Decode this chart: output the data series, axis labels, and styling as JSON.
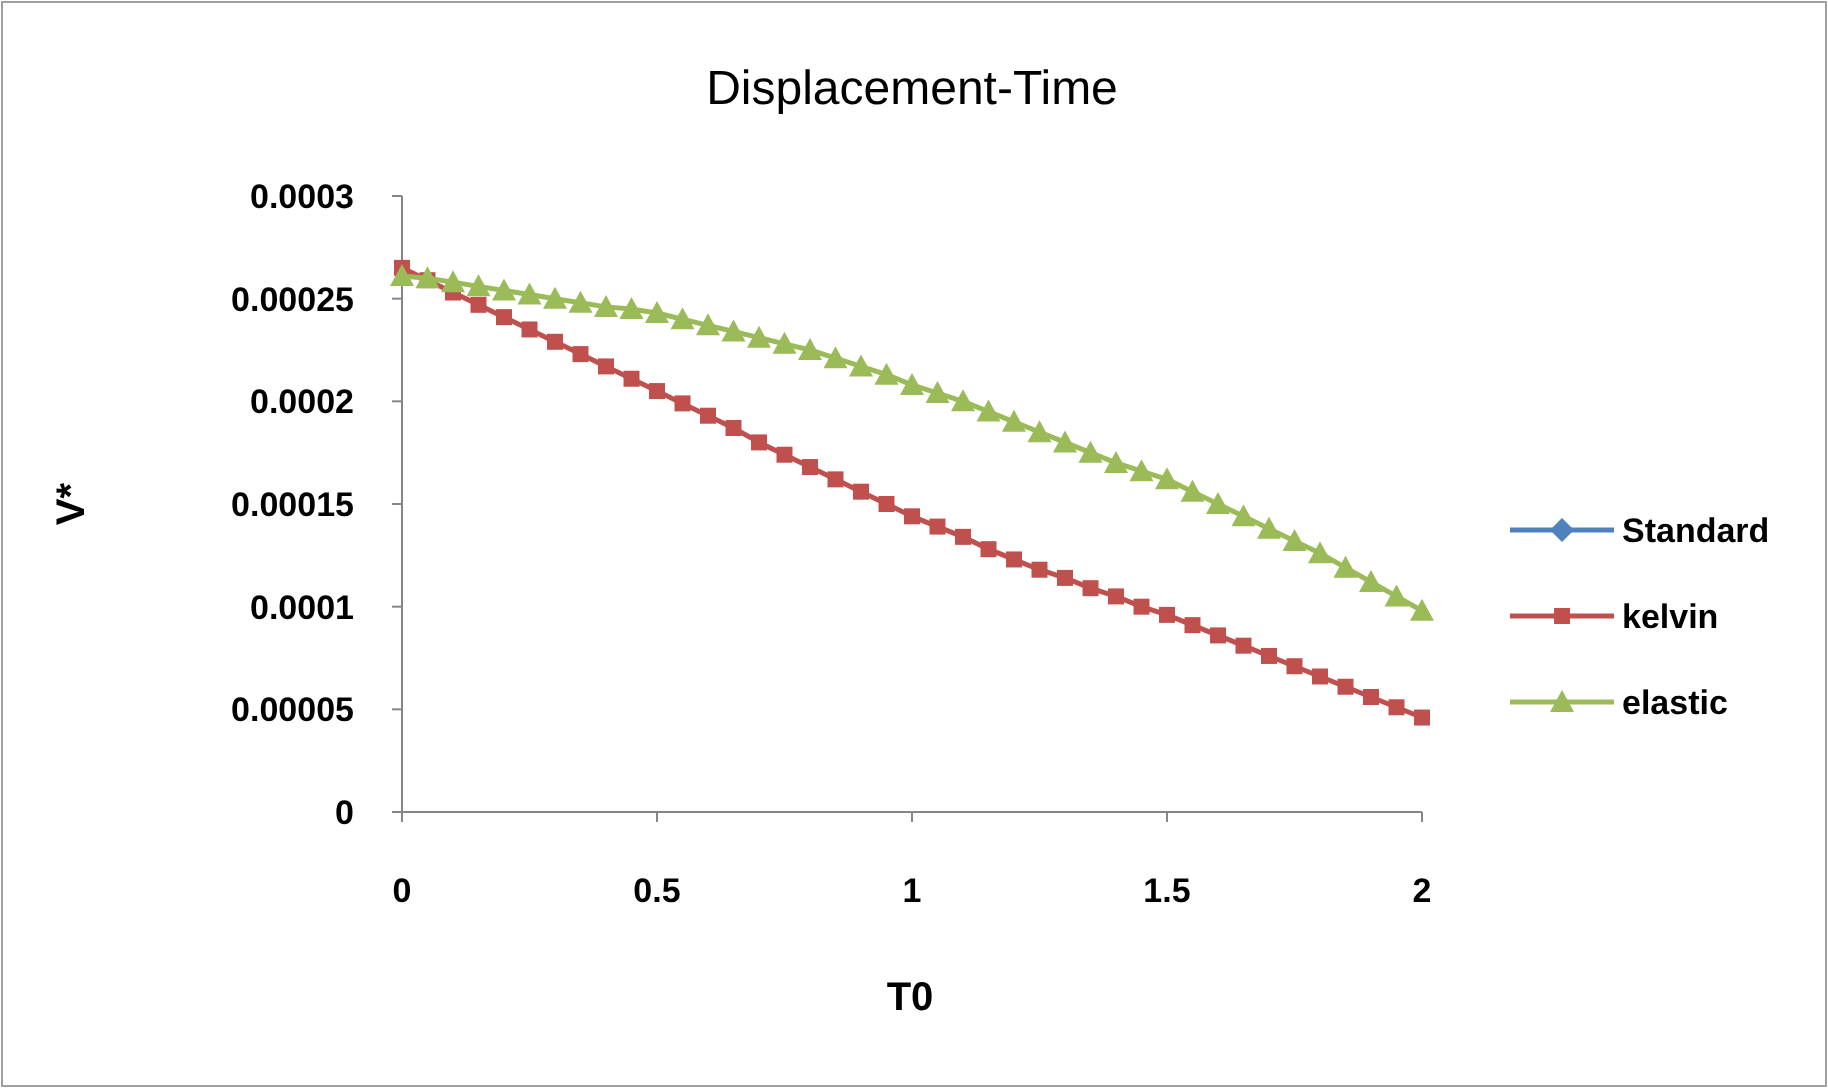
{
  "chart_data": {
    "type": "line",
    "title": "Displacement-Time",
    "xlabel": "T0",
    "ylabel": "V*",
    "xlim": [
      0,
      2
    ],
    "xticks": [
      0,
      0.5,
      1,
      1.5,
      2
    ],
    "ylim": [
      0,
      0.0003
    ],
    "yticks": [
      0,
      {
        "value": 5e-05,
        "label": "0.00005"
      },
      0.0001,
      0.00015,
      0.0002,
      0.00025,
      0.0003
    ],
    "grid": false,
    "legend": "right",
    "x": [
      0,
      0.05,
      0.1,
      0.15,
      0.2,
      0.25,
      0.3,
      0.35,
      0.4,
      0.45,
      0.5,
      0.55,
      0.6,
      0.65,
      0.7,
      0.75,
      0.8,
      0.85,
      0.9,
      0.95,
      1,
      1.05,
      1.1,
      1.15,
      1.2,
      1.25,
      1.3,
      1.35,
      1.4,
      1.45,
      1.5,
      1.55,
      1.6,
      1.65,
      1.7,
      1.75,
      1.8,
      1.85,
      1.9,
      1.95,
      2
    ],
    "series": [
      {
        "name": "Standard",
        "color": "#4f81bd",
        "marker": "diamond",
        "values": [
          null,
          null,
          null,
          null,
          null,
          null,
          null,
          null,
          null,
          null,
          null,
          null,
          null,
          null,
          null,
          null,
          null,
          null,
          null,
          null,
          null,
          null,
          null,
          null,
          null,
          null,
          null,
          null,
          null,
          null,
          null,
          null,
          null,
          null,
          null,
          null,
          null,
          null,
          null,
          null,
          null
        ]
      },
      {
        "name": "kelvin",
        "color": "#c0504d",
        "marker": "square",
        "values": [
          0.000265,
          0.000259,
          0.000253,
          0.000247,
          0.000241,
          0.000235,
          0.000229,
          0.000223,
          0.000217,
          0.000211,
          0.000205,
          0.000199,
          0.000193,
          0.000187,
          0.00018,
          0.000174,
          0.000168,
          0.000162,
          0.000156,
          0.00015,
          0.000144,
          0.000139,
          0.000134,
          0.000128,
          0.000123,
          0.000118,
          0.000114,
          0.000109,
          0.000105,
          0.0001,
          9.6e-05,
          9.1e-05,
          8.6e-05,
          8.1e-05,
          7.6e-05,
          7.1e-05,
          6.6e-05,
          6.1e-05,
          5.6e-05,
          5.1e-05,
          4.6e-05
        ]
      },
      {
        "name": "elastic",
        "color": "#9bbb59",
        "marker": "triangle",
        "values": [
          0.000261,
          0.00026,
          0.000258,
          0.000256,
          0.000254,
          0.000252,
          0.00025,
          0.000248,
          0.000246,
          0.000245,
          0.000243,
          0.00024,
          0.000237,
          0.000234,
          0.000231,
          0.000228,
          0.000225,
          0.000221,
          0.000217,
          0.000213,
          0.000208,
          0.000204,
          0.0002,
          0.000195,
          0.00019,
          0.000185,
          0.00018,
          0.000175,
          0.00017,
          0.000166,
          0.000162,
          0.000156,
          0.00015,
          0.000144,
          0.000138,
          0.000132,
          0.000126,
          0.000119,
          0.000112,
          0.000105,
          9.8e-05
        ]
      }
    ]
  }
}
